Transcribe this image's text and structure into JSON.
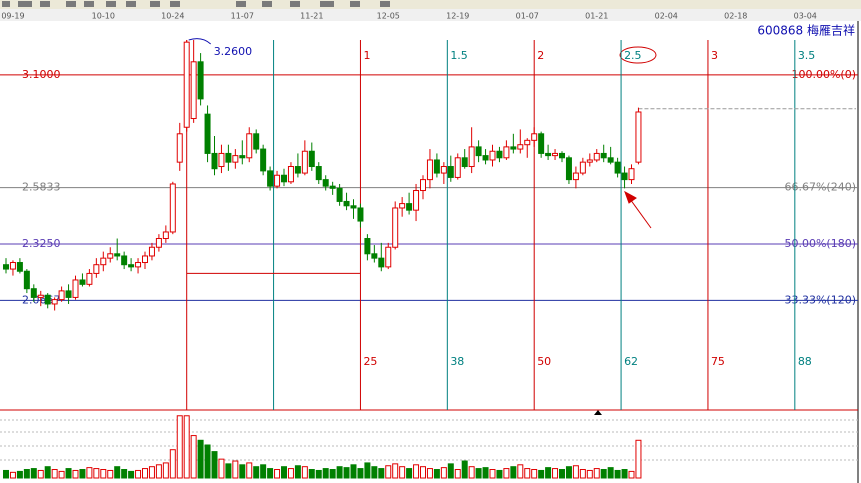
{
  "title": "600868 梅雁吉祥",
  "chart_data": {
    "type": "candlestick",
    "categories": [
      null,
      "09-19",
      null,
      null,
      null,
      null,
      null,
      null,
      null,
      null,
      null,
      null,
      null,
      null,
      "10-10",
      null,
      null,
      null,
      null,
      null,
      null,
      null,
      null,
      null,
      "10-24",
      null,
      null,
      null,
      null,
      null,
      null,
      null,
      null,
      null,
      "11-07",
      null,
      null,
      null,
      null,
      null,
      null,
      null,
      null,
      null,
      "11-21",
      null,
      null,
      null,
      null,
      null,
      null,
      null,
      null,
      null,
      null,
      "12-05",
      null,
      null,
      null,
      null,
      null,
      null,
      null,
      null,
      null,
      "12-19",
      null,
      null,
      null,
      null,
      null,
      null,
      null,
      null,
      null,
      "01-07",
      null,
      null,
      null,
      null,
      null,
      null,
      null,
      null,
      null,
      "01-21",
      null,
      null,
      null,
      null,
      null,
      null,
      null,
      null,
      null,
      "02-04",
      null,
      null,
      null,
      null,
      null,
      null,
      null,
      null,
      null,
      "02-18",
      null,
      null,
      null,
      null,
      null,
      null,
      null,
      null,
      null,
      "03-04"
    ],
    "open": [
      2.23,
      2.21,
      2.24,
      2.2,
      2.12,
      2.08,
      2.09,
      2.05,
      2.07,
      2.11,
      2.08,
      2.16,
      2.14,
      2.19,
      2.23,
      2.26,
      2.28,
      2.27,
      2.23,
      2.22,
      2.24,
      2.27,
      2.31,
      2.35,
      2.38,
      2.7,
      2.86,
      2.9,
      3.16,
      2.92,
      2.74,
      2.68,
      2.74,
      2.7,
      2.73,
      2.72,
      2.83,
      2.76,
      2.66,
      2.59,
      2.64,
      2.61,
      2.68,
      2.65,
      2.75,
      2.68,
      2.62,
      2.59,
      2.58,
      2.52,
      2.5,
      2.49,
      2.35,
      2.28,
      2.26,
      2.22,
      2.31,
      2.49,
      2.51,
      2.48,
      2.57,
      2.62,
      2.71,
      2.65,
      2.68,
      2.63,
      2.72,
      2.68,
      2.77,
      2.73,
      2.71,
      2.75,
      2.72,
      2.77,
      2.76,
      2.78,
      2.8,
      2.83,
      2.74,
      2.73,
      2.74,
      2.72,
      2.62,
      2.65,
      2.7,
      2.71,
      2.74,
      2.72,
      2.7,
      2.65,
      2.62,
      2.7,
      null,
      null,
      null,
      null,
      null,
      null,
      null,
      null,
      null,
      null,
      null,
      null,
      null,
      null,
      null,
      null,
      null,
      null,
      null,
      null,
      null,
      null,
      null,
      null
    ],
    "high": [
      2.26,
      2.25,
      2.26,
      2.21,
      2.14,
      2.11,
      2.1,
      2.08,
      2.13,
      2.14,
      2.18,
      2.19,
      2.21,
      2.26,
      2.29,
      2.31,
      2.35,
      2.29,
      2.26,
      2.26,
      2.29,
      2.33,
      2.37,
      2.41,
      2.61,
      2.88,
      3.26,
      3.26,
      3.2,
      2.96,
      2.82,
      2.78,
      2.78,
      2.76,
      2.8,
      2.86,
      2.85,
      2.78,
      2.68,
      2.66,
      2.67,
      2.7,
      2.74,
      2.8,
      2.79,
      2.7,
      2.64,
      2.61,
      2.6,
      2.56,
      2.53,
      2.51,
      2.37,
      2.32,
      2.33,
      2.33,
      2.52,
      2.54,
      2.56,
      2.6,
      2.64,
      2.76,
      2.74,
      2.7,
      2.73,
      2.74,
      2.76,
      2.86,
      2.8,
      2.76,
      2.78,
      2.77,
      2.8,
      2.83,
      2.85,
      2.81,
      2.86,
      2.84,
      2.78,
      2.76,
      2.75,
      2.73,
      2.68,
      2.72,
      2.74,
      2.76,
      2.78,
      2.77,
      2.72,
      2.68,
      2.69,
      2.95,
      null,
      null,
      null,
      null,
      null,
      null,
      null,
      null,
      null,
      null,
      null,
      null,
      null,
      null,
      null,
      null,
      null,
      null,
      null,
      null,
      null,
      null,
      null,
      null
    ],
    "low": [
      2.19,
      2.18,
      2.19,
      2.1,
      2.06,
      2.04,
      2.03,
      2.02,
      2.06,
      2.05,
      2.07,
      2.13,
      2.13,
      2.17,
      2.2,
      2.24,
      2.25,
      2.21,
      2.2,
      2.19,
      2.21,
      2.25,
      2.29,
      2.33,
      2.37,
      2.66,
      2.84,
      2.88,
      2.96,
      2.7,
      2.64,
      2.65,
      2.66,
      2.67,
      2.69,
      2.7,
      2.74,
      2.64,
      2.57,
      2.58,
      2.59,
      2.6,
      2.63,
      2.64,
      2.66,
      2.6,
      2.57,
      2.55,
      2.5,
      2.48,
      2.44,
      2.4,
      2.25,
      2.24,
      2.2,
      2.21,
      2.3,
      2.45,
      2.46,
      2.43,
      2.53,
      2.58,
      2.63,
      2.6,
      2.61,
      2.62,
      2.67,
      2.65,
      2.7,
      2.69,
      2.68,
      2.7,
      2.71,
      2.74,
      2.74,
      2.72,
      2.77,
      2.72,
      2.71,
      2.71,
      2.7,
      2.6,
      2.58,
      2.64,
      2.68,
      2.7,
      2.7,
      2.69,
      2.63,
      2.58,
      2.6,
      2.69,
      null,
      null,
      null,
      null,
      null,
      null,
      null,
      null,
      null,
      null,
      null,
      null,
      null,
      null,
      null,
      null,
      null,
      null,
      null,
      null,
      null,
      null,
      null,
      null
    ],
    "close": [
      2.21,
      2.24,
      2.2,
      2.12,
      2.08,
      2.09,
      2.05,
      2.07,
      2.11,
      2.08,
      2.16,
      2.14,
      2.19,
      2.23,
      2.26,
      2.28,
      2.27,
      2.23,
      2.22,
      2.24,
      2.27,
      2.31,
      2.35,
      2.38,
      2.6,
      2.83,
      3.25,
      3.16,
      2.99,
      2.74,
      2.67,
      2.74,
      2.7,
      2.73,
      2.72,
      2.83,
      2.76,
      2.66,
      2.59,
      2.64,
      2.61,
      2.68,
      2.65,
      2.75,
      2.68,
      2.62,
      2.59,
      2.58,
      2.52,
      2.5,
      2.49,
      2.43,
      2.28,
      2.26,
      2.22,
      2.31,
      2.49,
      2.51,
      2.48,
      2.57,
      2.62,
      2.71,
      2.65,
      2.68,
      2.63,
      2.72,
      2.68,
      2.77,
      2.73,
      2.71,
      2.75,
      2.72,
      2.77,
      2.76,
      2.78,
      2.8,
      2.83,
      2.74,
      2.73,
      2.74,
      2.72,
      2.62,
      2.65,
      2.7,
      2.71,
      2.74,
      2.72,
      2.7,
      2.65,
      2.62,
      2.67,
      2.93,
      null,
      null,
      null,
      null,
      null,
      null,
      null,
      null,
      null,
      null,
      null,
      null,
      null,
      null,
      null,
      null,
      null,
      null,
      null,
      null,
      null,
      null,
      null,
      null
    ],
    "volume": [
      8,
      6,
      7,
      9,
      10,
      8,
      12,
      9,
      7,
      10,
      8,
      9,
      11,
      10,
      9,
      8,
      12,
      9,
      7,
      8,
      10,
      12,
      14,
      16,
      30,
      66,
      66,
      45,
      40,
      35,
      28,
      20,
      15,
      18,
      14,
      16,
      12,
      14,
      10,
      9,
      12,
      10,
      13,
      12,
      9,
      8,
      10,
      9,
      12,
      11,
      14,
      10,
      16,
      12,
      10,
      13,
      15,
      12,
      10,
      14,
      12,
      10,
      9,
      11,
      15,
      9,
      18,
      12,
      10,
      11,
      9,
      8,
      10,
      12,
      14,
      10,
      9,
      8,
      11,
      10,
      9,
      12,
      13,
      9,
      8,
      10,
      9,
      11,
      8,
      9,
      7,
      40,
      null,
      null,
      null,
      null,
      null,
      null,
      null,
      null,
      null,
      null,
      null,
      null,
      null,
      null,
      null,
      null,
      null,
      null,
      null,
      null,
      null,
      null,
      null,
      null
    ],
    "up_color": "#e00000",
    "down_color": "#008000",
    "ylim": [
      1.564,
      3.347
    ],
    "volume_ylim": [
      0,
      70
    ],
    "levels": [
      {
        "value": 3.1,
        "label": "3.1000",
        "right_label": "100.00%(0)",
        "color": "#d00000"
      },
      {
        "value": 2.5833,
        "label": "2.5833",
        "right_label": "66.67%(240)",
        "color": "#808080"
      },
      {
        "value": 2.325,
        "label": "2.3250",
        "right_label": "50.00%(180)",
        "color": "#5a3cb4"
      },
      {
        "value": 2.0667,
        "label": "2.0667",
        "right_label": "33.33%(120)",
        "color": "#2030a0"
      }
    ],
    "cycles": [
      {
        "index": 26,
        "top": null,
        "bottom": null,
        "color": "#d00000"
      },
      {
        "index": 38.5,
        "top": null,
        "bottom": null,
        "color": "#008080"
      },
      {
        "index": 51,
        "top": 1,
        "bottom": 25,
        "color": "#d00000"
      },
      {
        "index": 63.5,
        "top": 1.5,
        "bottom": 38,
        "color": "#008080"
      },
      {
        "index": 76,
        "top": 2,
        "bottom": 50,
        "color": "#d00000"
      },
      {
        "index": 88.5,
        "top": 2.5,
        "bottom": 62,
        "color": "#008080"
      },
      {
        "index": 101,
        "top": 3,
        "bottom": 75,
        "color": "#d00000"
      },
      {
        "index": 113.5,
        "top": 3.5,
        "bottom": 88,
        "color": "#008080"
      }
    ],
    "high_annotation": {
      "value": 3.26,
      "label": "3.2600"
    },
    "range_line": {
      "value": 2.19,
      "from": 26,
      "to": 51
    },
    "marker_line": {
      "value": 2.945,
      "from": 91
    }
  }
}
